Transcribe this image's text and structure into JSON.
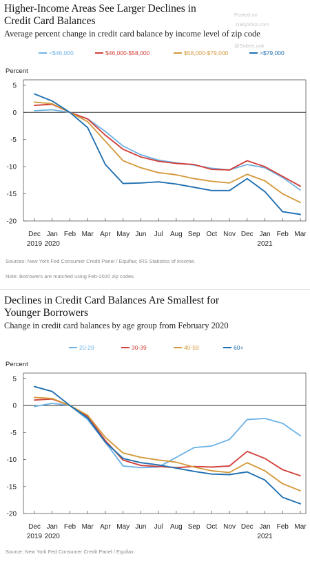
{
  "watermark": {
    "line1": "Posted on",
    "line2": "DailyShot.com",
    "line3": "@SoberLook"
  },
  "chart_data": [
    {
      "type": "line",
      "title": "Higher-Income Areas See Larger Declines in\nCredit Card Balances",
      "subtitle": "Average percent change in credit card balance by income level of zip code",
      "ylabel": "Percent",
      "ylim": [
        -20,
        6
      ],
      "yticks": [
        "5",
        "0",
        "-5",
        "-10",
        "-15",
        "-20"
      ],
      "yticks_values": [
        5,
        0,
        -5,
        -10,
        -15,
        -20
      ],
      "categories": [
        "Dec",
        "Jan",
        "Feb",
        "Mar",
        "Apr",
        "May",
        "Jun",
        "Jul",
        "Aug",
        "Sep",
        "Oct",
        "Nov",
        "Dec",
        "Jan",
        "Feb",
        "Mar"
      ],
      "year_labels": [
        {
          "at": 0,
          "text": "2019"
        },
        {
          "at": 1,
          "text": "2020"
        },
        {
          "at": 13,
          "text": "2021"
        }
      ],
      "grid": false,
      "legend_position": "top",
      "series": [
        {
          "name": "<$46,000",
          "color": "#6fb4e6",
          "values": [
            0.3,
            0.5,
            0,
            -1.2,
            -3.5,
            -6.2,
            -7.8,
            -8.8,
            -9.3,
            -9.7,
            -10.3,
            -10.6,
            -9.6,
            -10.2,
            -12.0,
            -14.3
          ]
        },
        {
          "name": "$46,000-$58,000",
          "color": "#d2403a",
          "values": [
            1.3,
            1.5,
            0,
            -1.2,
            -4.2,
            -6.8,
            -8.2,
            -9.0,
            -9.4,
            -9.6,
            -10.5,
            -10.6,
            -8.9,
            -10.0,
            -11.8,
            -13.6
          ]
        },
        {
          "name": "$58,000-$79,000",
          "color": "#d49a3d",
          "values": [
            1.9,
            1.6,
            0,
            -1.7,
            -5.3,
            -8.9,
            -10.2,
            -11.1,
            -11.5,
            -12.2,
            -12.7,
            -13.0,
            -11.4,
            -12.6,
            -15.0,
            -16.6
          ]
        },
        {
          "name": ">$79,000",
          "color": "#1f6fb0",
          "values": [
            3.4,
            2.1,
            0,
            -2.8,
            -9.6,
            -13.1,
            -13.0,
            -12.8,
            -13.2,
            -13.8,
            -14.4,
            -14.4,
            -12.2,
            -14.6,
            -18.3,
            -18.8
          ]
        }
      ],
      "sources": "Sources: New York Fed Consumer Credit Panel / Equifax; IRS Statistics of Income.",
      "note": "Note: Borrowers are matched using Feb-2020 zip codes."
    },
    {
      "type": "line",
      "title": "Declines in Credit Card Balances Are Smallest for\nYounger Borrowers",
      "subtitle": "Change in credit card balances by age group from February 2020",
      "ylabel": "Percent",
      "ylim": [
        -20,
        6
      ],
      "yticks": [
        "5",
        "0",
        "-5",
        "-10",
        "-15",
        "-20"
      ],
      "yticks_values": [
        5,
        0,
        -5,
        -10,
        -15,
        -20
      ],
      "categories": [
        "Dec",
        "Jan",
        "Feb",
        "Mar",
        "Apr",
        "May",
        "Jun",
        "Jul",
        "Aug",
        "Sep",
        "Oct",
        "Nov",
        "Dec",
        "Jan",
        "Feb",
        "Mar"
      ],
      "year_labels": [
        {
          "at": 0,
          "text": "2019"
        },
        {
          "at": 1,
          "text": "2020"
        },
        {
          "at": 13,
          "text": "2021"
        }
      ],
      "grid": false,
      "legend_position": "top",
      "series": [
        {
          "name": "20-29",
          "color": "#6fb4e6",
          "values": [
            -0.2,
            0.4,
            0,
            -2.6,
            -6.8,
            -11.2,
            -11.5,
            -11.4,
            -9.6,
            -7.8,
            -7.5,
            -6.3,
            -2.6,
            -2.4,
            -3.3,
            -5.6
          ]
        },
        {
          "name": "30-39",
          "color": "#d2403a",
          "values": [
            1.0,
            1.2,
            0,
            -2.0,
            -6.5,
            -10.1,
            -11.1,
            -11.3,
            -11.5,
            -11.3,
            -11.4,
            -11.2,
            -8.5,
            -9.8,
            -11.9,
            -13.0
          ]
        },
        {
          "name": "40-59",
          "color": "#d49a3d",
          "values": [
            1.5,
            1.3,
            0,
            -1.8,
            -5.9,
            -8.8,
            -9.6,
            -10.1,
            -10.5,
            -11.4,
            -12.1,
            -12.4,
            -10.6,
            -12.1,
            -14.5,
            -15.8
          ]
        },
        {
          "name": "60+",
          "color": "#1f6fb0",
          "values": [
            3.5,
            2.6,
            0,
            -2.3,
            -6.8,
            -9.8,
            -10.6,
            -11.0,
            -11.6,
            -12.2,
            -12.7,
            -12.8,
            -12.3,
            -13.8,
            -17.0,
            -18.2
          ]
        }
      ],
      "sources": "Source: New York Fed Consumer Credit Panel / Equifax."
    }
  ]
}
